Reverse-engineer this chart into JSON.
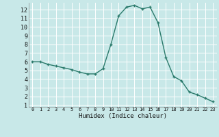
{
  "x": [
    0,
    1,
    2,
    3,
    4,
    5,
    6,
    7,
    8,
    9,
    10,
    11,
    12,
    13,
    14,
    15,
    16,
    17,
    18,
    19,
    20,
    21,
    22,
    23
  ],
  "y": [
    6.0,
    6.0,
    5.7,
    5.5,
    5.3,
    5.1,
    4.8,
    4.6,
    4.6,
    5.2,
    8.0,
    11.3,
    12.3,
    12.5,
    12.1,
    12.3,
    10.5,
    6.5,
    4.3,
    3.8,
    2.5,
    2.2,
    1.8,
    1.4
  ],
  "xlabel": "Humidex (Indice chaleur)",
  "ylim": [
    0.8,
    12.8
  ],
  "xlim": [
    -0.5,
    23.5
  ],
  "yticks": [
    1,
    2,
    3,
    4,
    5,
    6,
    7,
    8,
    9,
    10,
    11,
    12
  ],
  "xticks": [
    0,
    1,
    2,
    3,
    4,
    5,
    6,
    7,
    8,
    9,
    10,
    11,
    12,
    13,
    14,
    15,
    16,
    17,
    18,
    19,
    20,
    21,
    22,
    23
  ],
  "line_color": "#2a7a6b",
  "bg_color": "#c8e8e8",
  "grid_color": "#ffffff",
  "grid_minor_color": "#e0f0f0"
}
